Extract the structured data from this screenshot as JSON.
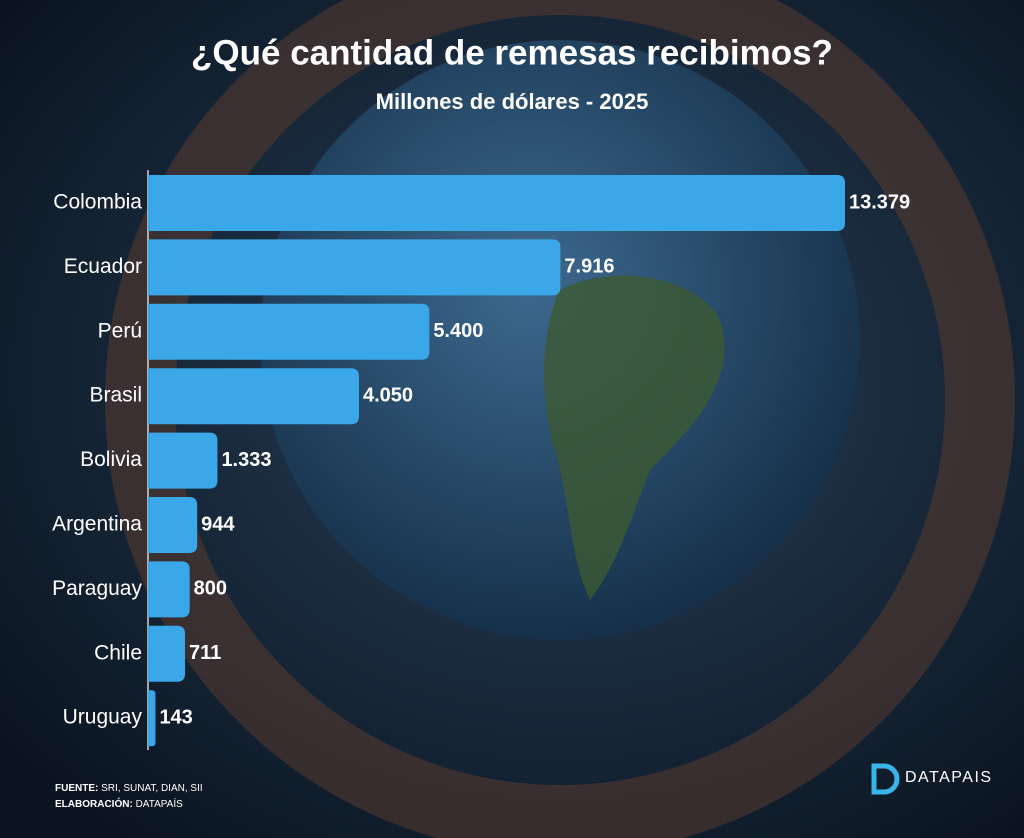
{
  "chart_data": {
    "type": "bar",
    "orientation": "horizontal",
    "title": "¿Qué cantidad de remesas recibimos?",
    "subtitle": "Millones de dólares - 2025",
    "categories": [
      "Colombia",
      "Ecuador",
      "Perú",
      "Brasil",
      "Bolivia",
      "Argentina",
      "Paraguay",
      "Chile",
      "Uruguay"
    ],
    "values": [
      13379,
      7916,
      5400,
      4050,
      1333,
      944,
      800,
      711,
      143
    ],
    "value_labels": [
      "13.379",
      "7.916",
      "5.400",
      "4.050",
      "1.333",
      "944",
      "800",
      "711",
      "143"
    ],
    "color": "#3aa8e8"
  },
  "footer": {
    "source_label": "FUENTE:",
    "source": "SRI, SUNAT, DIAN, SII",
    "credit_label": "ELABORACIÓN:",
    "credit": "DATAPAÍS",
    "logo": "DATAPAIS"
  }
}
